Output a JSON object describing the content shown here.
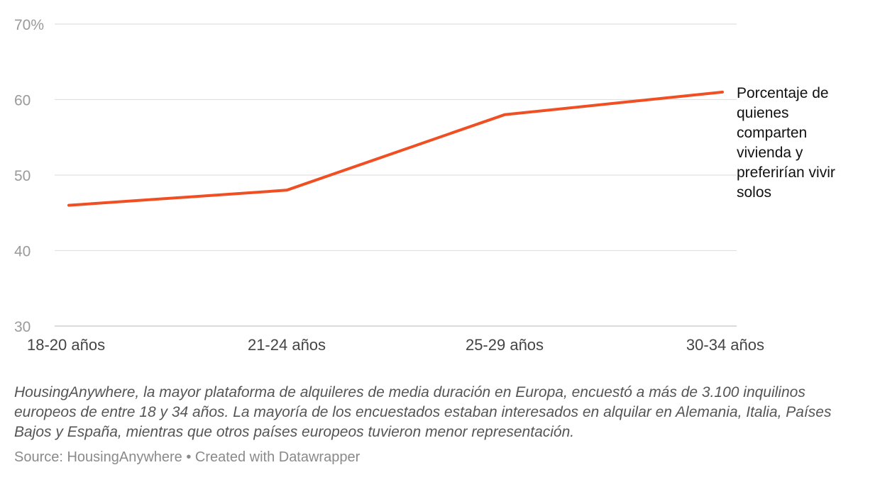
{
  "chart_data": {
    "type": "line",
    "categories": [
      "18-20 años",
      "21-24 años",
      "25-29 años",
      "30-34 años"
    ],
    "series": [
      {
        "name": "Porcentaje de quienes comparten vivienda y preferirían vivir solos",
        "name_lines": [
          "Porcentaje de",
          "quienes",
          "comparten",
          "vivienda y",
          "preferirían vivir",
          "solos"
        ],
        "values": [
          46,
          48,
          58,
          61
        ],
        "color": "#f04e23"
      }
    ],
    "y_ticks": [
      {
        "value": 30,
        "label": "30"
      },
      {
        "value": 40,
        "label": "40"
      },
      {
        "value": 50,
        "label": "50"
      },
      {
        "value": 60,
        "label": "60"
      },
      {
        "value": 70,
        "label": "70%"
      }
    ],
    "ylim": [
      30,
      70
    ],
    "grid": true,
    "title": "",
    "xlabel": "",
    "ylabel": ""
  },
  "notes": "HousingAnywhere, la mayor plataforma de alquileres de media duración en Europa, encuestó a más de 3.100 inquilinos europeos de entre 18 y 34 años. La mayoría de los encuestados estaban interesados en alquilar en Alemania, Italia, Países Bajos y España, mientras que otros países europeos tuvieron menor representación.",
  "source_line": "Source: HousingAnywhere • Created with Datawrapper",
  "colors": {
    "grid": "#e1e1e1",
    "baseline": "#cfcfcf"
  }
}
